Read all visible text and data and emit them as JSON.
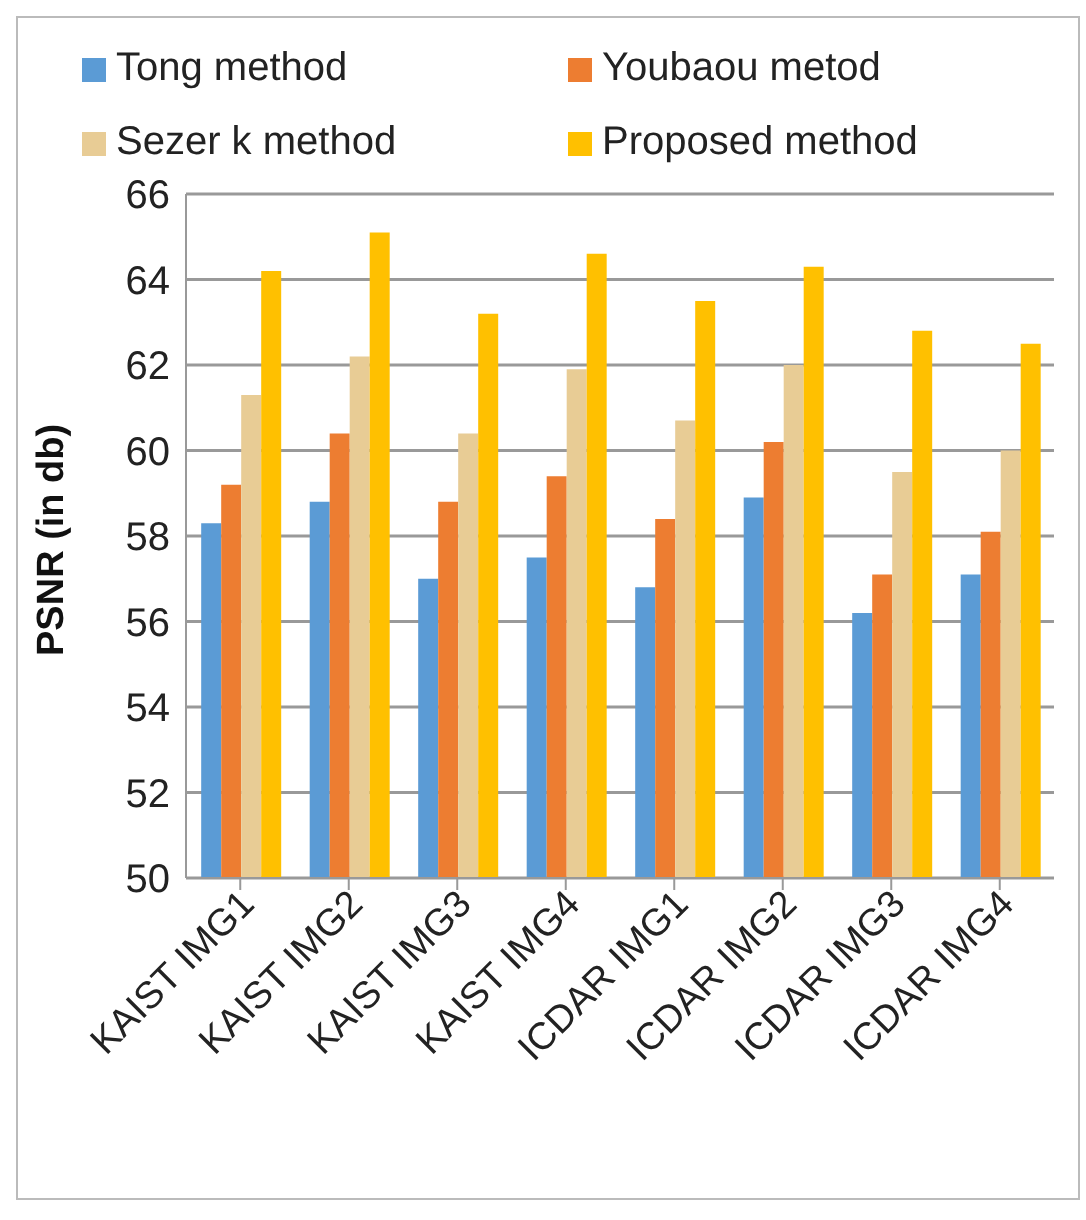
{
  "chart_data": {
    "type": "bar",
    "ylabel": "PSNR (in db)",
    "categories": [
      "KAIST IMG1",
      "KAIST IMG2",
      "KAIST IMG3",
      "KAIST IMG4",
      "ICDAR IMG1",
      "ICDAR IMG2",
      "ICDAR IMG3",
      "ICDAR IMG4"
    ],
    "series": [
      {
        "name": "Tong method",
        "color": "#5b9bd5",
        "values": [
          58.3,
          58.8,
          57.0,
          57.5,
          56.8,
          58.9,
          56.2,
          57.1
        ]
      },
      {
        "name": "Youbaou metod",
        "color": "#ed7d31",
        "values": [
          59.2,
          60.4,
          58.8,
          59.4,
          58.4,
          60.2,
          57.1,
          58.1
        ]
      },
      {
        "name": "Sezer k method",
        "color": "#e8cc95",
        "values": [
          61.3,
          62.2,
          60.4,
          61.9,
          60.7,
          62.0,
          59.5,
          60.0
        ]
      },
      {
        "name": "Proposed method",
        "color": "#ffc000",
        "values": [
          64.2,
          65.1,
          63.2,
          64.6,
          63.5,
          64.3,
          62.8,
          62.5
        ]
      }
    ],
    "ylim": [
      50,
      66
    ],
    "yticks": [
      50,
      52,
      54,
      56,
      58,
      60,
      62,
      64,
      66
    ],
    "grid": "y",
    "legend": "top"
  }
}
